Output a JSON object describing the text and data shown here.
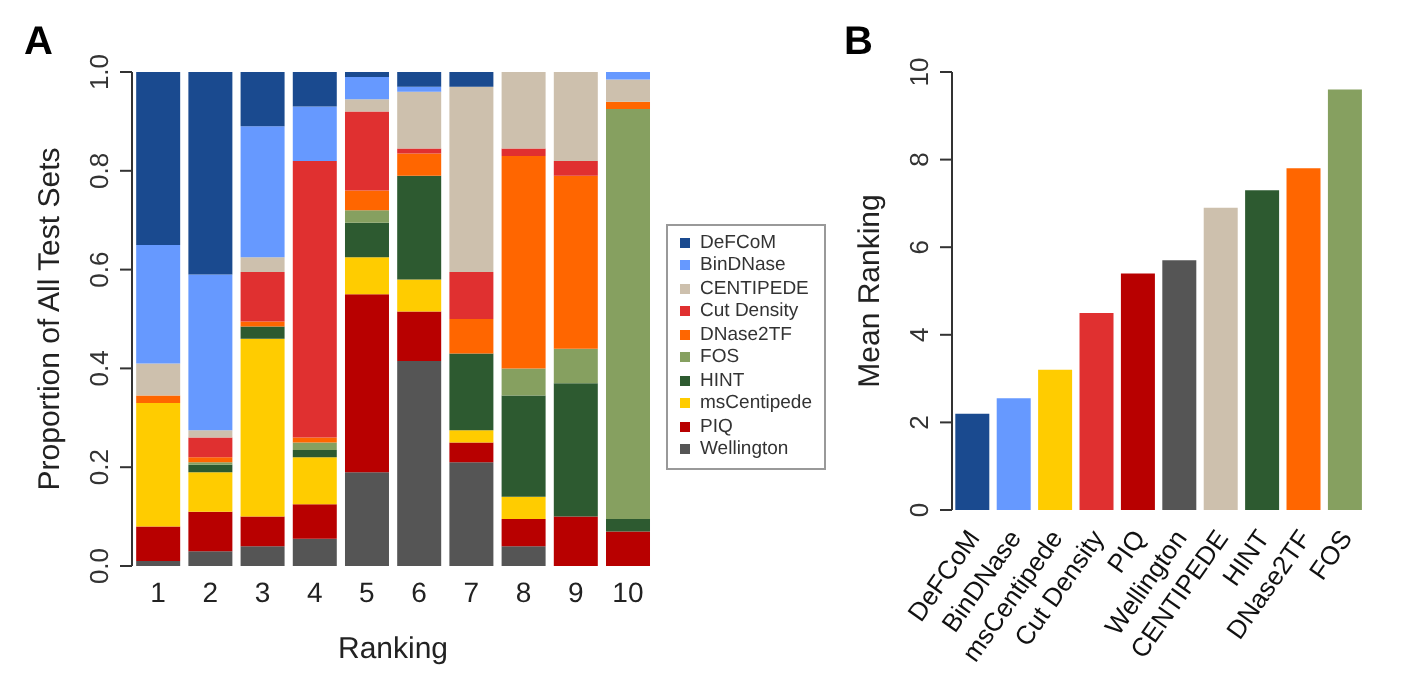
{
  "chart_data": [
    {
      "type": "bar",
      "title": "A",
      "xlabel": "Ranking",
      "ylabel": "Proportion of All Test Sets",
      "stacked": true,
      "legend": "right",
      "categories": [
        "1",
        "2",
        "3",
        "4",
        "5",
        "6",
        "7",
        "8",
        "9",
        "10"
      ],
      "ylim": [
        0,
        1
      ],
      "yticks": [
        {
          "value": 0,
          "label": "0.0"
        },
        {
          "value": 0.2,
          "label": "0.2"
        },
        {
          "value": 0.4,
          "label": "0.4"
        },
        {
          "value": 0.6,
          "label": "0.6"
        },
        {
          "value": 0.8,
          "label": "0.8"
        },
        {
          "value": 1,
          "label": "1.0"
        }
      ],
      "series": [
        {
          "name": "Wellington",
          "color": "#555555",
          "values": [
            0.01,
            0.03,
            0.04,
            0.055,
            0.19,
            0.415,
            0.21,
            0.04,
            0,
            0
          ]
        },
        {
          "name": "PIQ",
          "color": "#b80000",
          "values": [
            0.07,
            0.08,
            0.06,
            0.07,
            0.36,
            0.1,
            0.04,
            0.055,
            0.1,
            0.07
          ]
        },
        {
          "name": "msCentipede",
          "color": "#ffcc00",
          "values": [
            0.25,
            0.08,
            0.36,
            0.095,
            0.075,
            0.065,
            0.025,
            0.045,
            0,
            0
          ]
        },
        {
          "name": "HINT",
          "color": "#2d5a30",
          "values": [
            0,
            0.015,
            0.025,
            0.015,
            0.07,
            0.21,
            0.155,
            0.205,
            0.27,
            0.025
          ]
        },
        {
          "name": "FOS",
          "color": "#86a060",
          "values": [
            0,
            0.005,
            0,
            0.015,
            0.025,
            0,
            0,
            0.055,
            0.07,
            0.83
          ]
        },
        {
          "name": "DNase2TF",
          "color": "#ff6600",
          "values": [
            0.015,
            0.01,
            0.01,
            0.01,
            0.04,
            0.045,
            0.07,
            0.43,
            0.35,
            0.015
          ]
        },
        {
          "name": "Cut Density",
          "color": "#e03030",
          "values": [
            0,
            0.04,
            0.1,
            0.56,
            0.16,
            0.01,
            0.095,
            0.015,
            0.03,
            0
          ]
        },
        {
          "name": "CENTIPEDE",
          "color": "#cdc0ad",
          "values": [
            0.065,
            0.015,
            0.03,
            0,
            0.025,
            0.115,
            0.375,
            0.155,
            0.18,
            0.045
          ]
        },
        {
          "name": "BinDNase",
          "color": "#6699ff",
          "values": [
            0.24,
            0.315,
            0.265,
            0.11,
            0.045,
            0.01,
            0,
            0,
            0,
            0.015
          ]
        },
        {
          "name": "DeFCoM",
          "color": "#1a4a8f",
          "values": [
            0.35,
            0.41,
            0.11,
            0.07,
            0.01,
            0.03,
            0.03,
            0,
            0,
            0
          ]
        }
      ]
    },
    {
      "type": "bar",
      "title": "B",
      "ylabel": "Mean Ranking",
      "categories": [
        "DeFCoM",
        "BinDNase",
        "msCentipede",
        "Cut Density",
        "PIQ",
        "Wellington",
        "CENTIPEDE",
        "HINT",
        "DNase2TF",
        "FOS"
      ],
      "values": [
        2.2,
        2.55,
        3.2,
        4.5,
        5.4,
        5.7,
        6.9,
        7.3,
        7.8,
        9.6
      ],
      "colors": [
        "#1a4a8f",
        "#6699ff",
        "#ffcc00",
        "#e03030",
        "#b80000",
        "#555555",
        "#cdc0ad",
        "#2d5a30",
        "#ff6600",
        "#86a060"
      ],
      "ylim": [
        0,
        10
      ],
      "yticks": [
        0,
        2,
        4,
        6,
        8,
        10
      ]
    }
  ]
}
